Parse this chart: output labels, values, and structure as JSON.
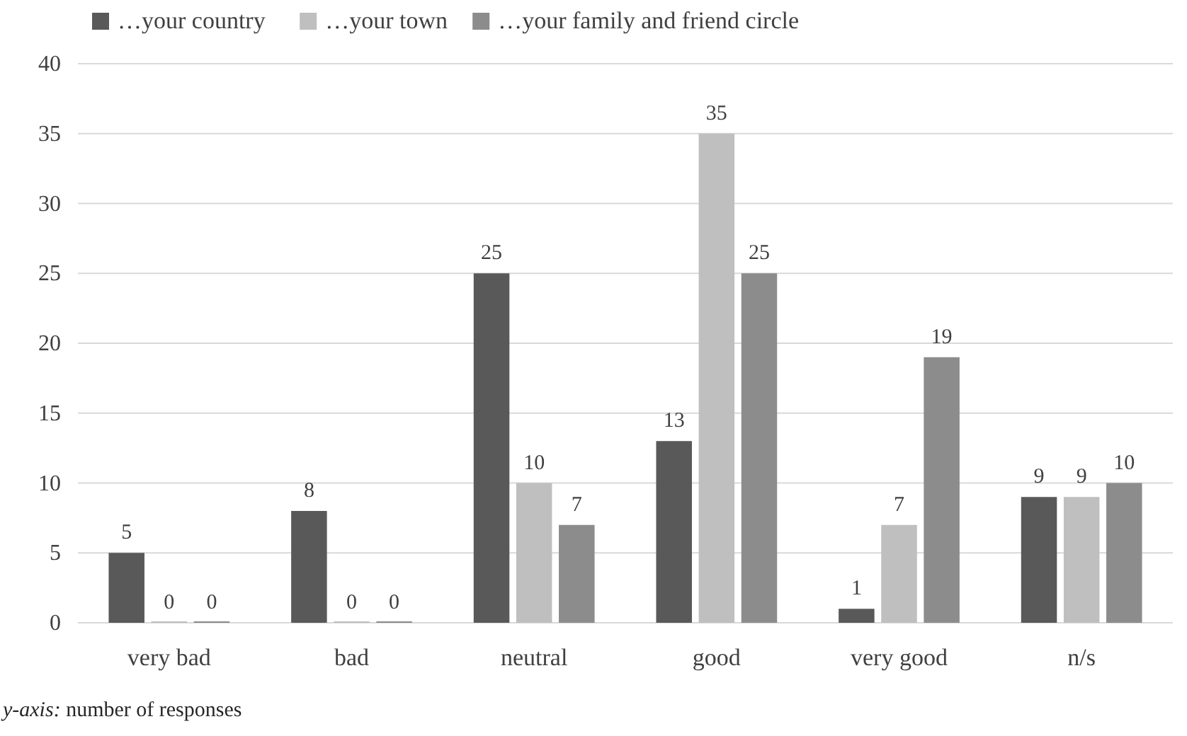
{
  "chart_data": {
    "type": "bar",
    "categories": [
      "very bad",
      "bad",
      "neutral",
      "good",
      "very good",
      "n/s"
    ],
    "series": [
      {
        "name": "…your country",
        "color": "#595959",
        "values": [
          5,
          8,
          25,
          13,
          1,
          9
        ]
      },
      {
        "name": "…your town",
        "color": "#bfbfbf",
        "values": [
          0,
          0,
          10,
          35,
          7,
          9
        ]
      },
      {
        "name": "…your family and friend circle",
        "color": "#8c8c8c",
        "values": [
          0,
          0,
          7,
          25,
          19,
          10
        ]
      }
    ],
    "ylim": [
      0,
      40
    ],
    "yticks": [
      0,
      5,
      10,
      15,
      20,
      25,
      30,
      35,
      40
    ],
    "grid": "y",
    "legend": "top",
    "data_labels": true,
    "annotations": [
      "y-axis: number of responses"
    ]
  }
}
